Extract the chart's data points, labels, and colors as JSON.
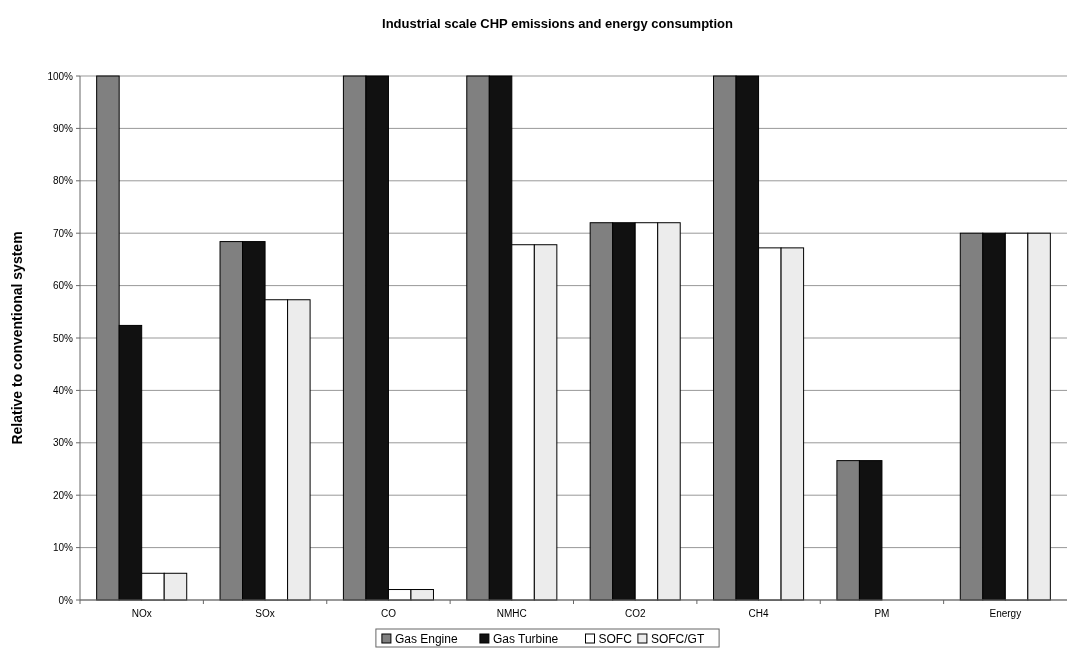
{
  "chart_data": {
    "type": "bar",
    "title": "Industrial scale CHP emissions and energy consumption",
    "ylabel": "Relative to conventional system",
    "categories": [
      "NOx",
      "SOx",
      "CO",
      "NMHC",
      "CO2",
      "CH4",
      "PM",
      "Energy"
    ],
    "series": [
      {
        "name": "Gas Engine",
        "color": "#808080",
        "values": [
          100,
          68.4,
          100,
          100,
          72,
          100,
          26.6,
          70
        ]
      },
      {
        "name": "Gas Turbine",
        "color": "#111111",
        "values": [
          52.4,
          68.4,
          100,
          100,
          72,
          100,
          26.6,
          70
        ]
      },
      {
        "name": "SOFC",
        "color": "#ffffff",
        "values": [
          5.1,
          57.3,
          2,
          67.8,
          72,
          67.2,
          0,
          70
        ]
      },
      {
        "name": "SOFC/GT",
        "color": "#ececec",
        "values": [
          5.1,
          57.3,
          2,
          67.8,
          72,
          67.2,
          0,
          70
        ]
      }
    ],
    "ylim": [
      0,
      100
    ],
    "yticks": [
      {
        "value": 0,
        "label": "0%"
      },
      {
        "value": 10,
        "label": "10%"
      },
      {
        "value": 20,
        "label": "20%"
      },
      {
        "value": 30,
        "label": "30%"
      },
      {
        "value": 40,
        "label": "40%"
      },
      {
        "value": 50,
        "label": "50%"
      },
      {
        "value": 60,
        "label": "60%"
      },
      {
        "value": 70,
        "label": "70%"
      },
      {
        "value": 80,
        "label": "80%"
      },
      {
        "value": 90,
        "label": "90%"
      },
      {
        "value": 100,
        "label": "100%"
      }
    ],
    "grid": "y",
    "legend": "bottom"
  }
}
